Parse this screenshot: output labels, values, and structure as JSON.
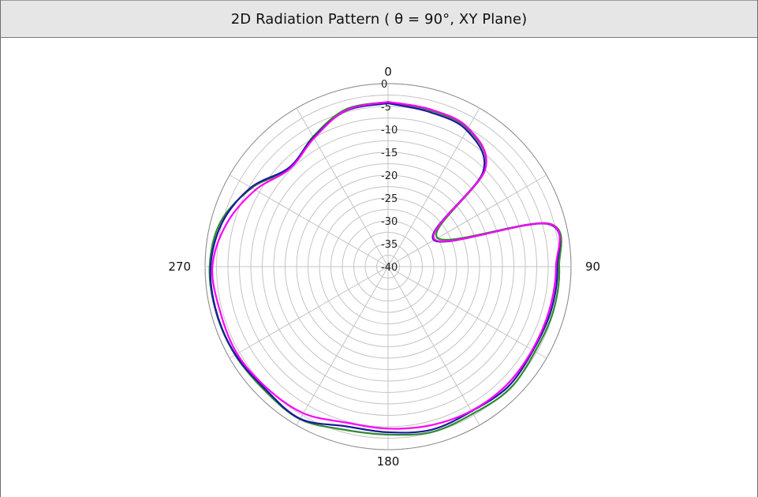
{
  "chart_data": {
    "type": "polar",
    "title": "2D Radiation Pattern ( θ = 90°, XY Plane)",
    "radial_axis": {
      "min": -40,
      "max": 0,
      "ticks": [
        0,
        -5,
        -10,
        -15,
        -20,
        -25,
        -30,
        -35,
        -40
      ]
    },
    "angle_ticks_deg": [
      0,
      90,
      180,
      270
    ],
    "angle_labels": [
      "0",
      "90",
      "180",
      "270"
    ],
    "spokes_every_deg": 30,
    "grid": true,
    "series_colors": [
      "#2e8b2e",
      "#1a1aa0",
      "#ff00ff"
    ],
    "series": [
      {
        "color": "#2e8b2e",
        "angles": [
          0,
          15,
          30,
          45,
          60,
          75,
          90,
          105,
          120,
          135,
          150,
          165,
          180,
          195,
          210,
          225,
          240,
          255,
          270,
          285,
          300,
          315,
          330,
          345,
          360
        ],
        "values": [
          -4,
          -4.6,
          -5.2,
          -10,
          -27.5,
          -3.6,
          -2.6,
          -2.6,
          -2.9,
          -2.3,
          -2.9,
          -2.6,
          -3.3,
          -3.1,
          -1.5,
          -1.8,
          -1.4,
          -1.1,
          -1.0,
          -2.1,
          -5.6,
          -9.6,
          -7.2,
          -4.4,
          -4
        ]
      },
      {
        "color": "#1a1aa0",
        "angles": [
          0,
          15,
          30,
          45,
          60,
          75,
          90,
          105,
          120,
          135,
          150,
          165,
          180,
          195,
          210,
          225,
          240,
          255,
          270,
          285,
          300,
          315,
          330,
          345,
          360
        ],
        "values": [
          -4.3,
          -5.0,
          -5.6,
          -10.6,
          -28.4,
          -3.9,
          -3.0,
          -3.1,
          -3.4,
          -2.9,
          -3.5,
          -3.1,
          -3.8,
          -3.9,
          -1.6,
          -2.1,
          -1.5,
          -1.2,
          -1.2,
          -2.5,
          -5.4,
          -9.4,
          -7.4,
          -4.7,
          -4.3
        ]
      },
      {
        "color": "#ff00ff",
        "angles": [
          0,
          15,
          30,
          45,
          60,
          75,
          90,
          105,
          120,
          135,
          150,
          165,
          180,
          195,
          210,
          225,
          240,
          255,
          270,
          285,
          300,
          315,
          330,
          345,
          360
        ],
        "values": [
          -4.0,
          -4.4,
          -5.0,
          -10.0,
          -28.2,
          -3.7,
          -3.3,
          -3.5,
          -3.6,
          -3.4,
          -3.6,
          -4.1,
          -4.6,
          -4.7,
          -3.0,
          -2.5,
          -1.9,
          -2.0,
          -1.6,
          -3.5,
          -6.5,
          -9.7,
          -7.6,
          -4.6,
          -4.0
        ]
      }
    ]
  }
}
